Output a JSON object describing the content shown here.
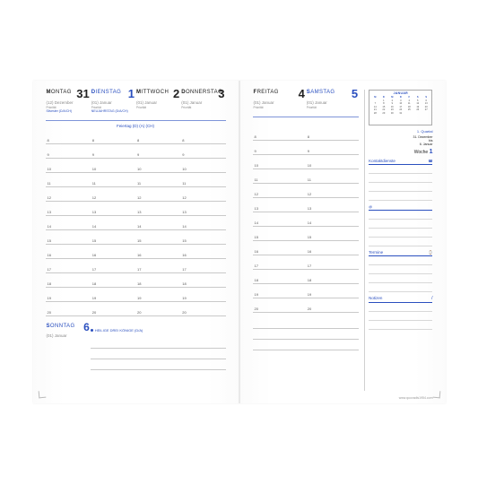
{
  "colors": {
    "accent": "#2a4fbf",
    "text": "#222222",
    "muted": "#888888",
    "line": "#c9c9c9"
  },
  "left": {
    "days": [
      {
        "cap": "M",
        "rest": "ONTAG",
        "num": "31",
        "month": "(12) Dezember",
        "color": "black",
        "note": "Silvester (D/A/CH)"
      },
      {
        "cap": "D",
        "rest": "IENSTAG",
        "num": "1",
        "month": "(01) Januar",
        "color": "blue",
        "note": "NEUJAHRSTAG (D/A/CH)"
      },
      {
        "cap": "M",
        "rest": "ITTWOCH",
        "num": "2",
        "month": "(01) Januar",
        "color": "black",
        "note": ""
      },
      {
        "cap": "D",
        "rest": "ONNERSTAG",
        "num": "3",
        "month": "(01) Januar",
        "color": "black",
        "note": ""
      }
    ],
    "holidayBanner": "Feiertag (D) (A) (CH)",
    "hours": [
      "8",
      "9",
      "10",
      "11",
      "12",
      "13",
      "14",
      "15",
      "16",
      "17",
      "18",
      "19",
      "20"
    ],
    "sunday": {
      "cap": "S",
      "rest": "ONNTAG",
      "num": "6",
      "month": "(01) Januar",
      "note": "HEILIGE DREI KÖNIGE (D/A)"
    }
  },
  "right": {
    "days": [
      {
        "cap": "F",
        "rest": "REITAG",
        "num": "4",
        "month": "(01) Januar",
        "color": "black"
      },
      {
        "cap": "S",
        "rest": "AMSTAG",
        "num": "5",
        "month": "(01) Januar",
        "color": "blue"
      }
    ],
    "hours": [
      "8",
      "9",
      "10",
      "11",
      "12",
      "13",
      "14",
      "15",
      "16",
      "17",
      "18",
      "19",
      "20"
    ],
    "miniCal": {
      "title": "JANUAR",
      "headers": [
        "M",
        "D",
        "M",
        "D",
        "F",
        "S",
        "S"
      ],
      "rows": [
        [
          "",
          "1",
          "2",
          "3",
          "4",
          "5",
          "6"
        ],
        [
          "7",
          "8",
          "9",
          "10",
          "11",
          "12",
          "13"
        ],
        [
          "14",
          "15",
          "16",
          "17",
          "18",
          "19",
          "20"
        ],
        [
          "21",
          "22",
          "23",
          "24",
          "25",
          "26",
          "27"
        ],
        [
          "28",
          "29",
          "30",
          "31",
          "",
          "",
          ""
        ]
      ]
    },
    "quartal": "1. Quartal",
    "dateRange": {
      "l1": "31. Dezember",
      "l2": "bis",
      "l3": "6. Januar"
    },
    "wocheLabel": "Woche",
    "wocheNum": "1",
    "sections": {
      "kontakt": "Kontaktdienste",
      "termine": "Termine",
      "notizen": "Notizen"
    },
    "footer": "www.quovadis1954.com"
  }
}
